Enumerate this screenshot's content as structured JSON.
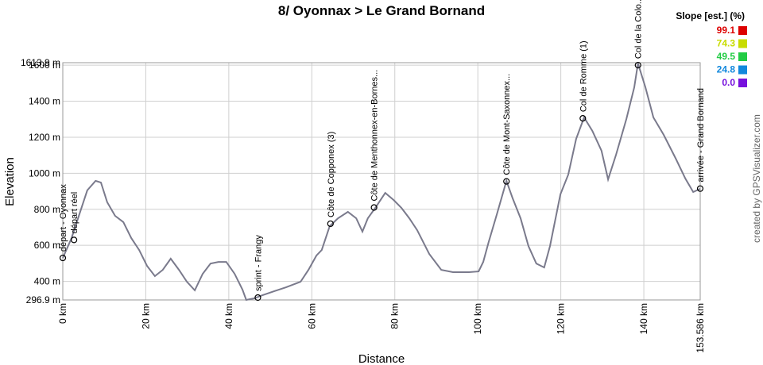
{
  "chart_data": {
    "type": "line",
    "title": "8/ Oyonnax > Le Grand Bornand",
    "x_label": "Distance",
    "y_label": "Elevation",
    "credit": "created by GPSVisualizer.com",
    "xlim": [
      0,
      153.586
    ],
    "ylim": [
      296.9,
      1613.9
    ],
    "xticks": [
      {
        "value": 0,
        "label": "0 km"
      },
      {
        "value": 20,
        "label": "20 km"
      },
      {
        "value": 40,
        "label": "40 km"
      },
      {
        "value": 60,
        "label": "60 km"
      },
      {
        "value": 80,
        "label": "80 km"
      },
      {
        "value": 100,
        "label": "100 km"
      },
      {
        "value": 120,
        "label": "120 km"
      },
      {
        "value": 140,
        "label": "140 km"
      },
      {
        "value": 153.586,
        "label": "153.586 km"
      }
    ],
    "yticks": [
      {
        "value": 296.9,
        "label": "296.9 m"
      },
      {
        "value": 400,
        "label": "400 m"
      },
      {
        "value": 600,
        "label": "600 m"
      },
      {
        "value": 800,
        "label": "800 m"
      },
      {
        "value": 1000,
        "label": "1000 m"
      },
      {
        "value": 1200,
        "label": "1200 m"
      },
      {
        "value": 1400,
        "label": "1400 m"
      },
      {
        "value": 1600,
        "label": "1600 m"
      },
      {
        "value": 1613.9,
        "label": "1613.9 m"
      }
    ],
    "grid": true,
    "x": [
      0,
      2.1,
      4.0,
      5.9,
      7.9,
      9.2,
      10.7,
      12.6,
      14.6,
      16.5,
      18.4,
      20.3,
      22.2,
      24.1,
      26.0,
      28.0,
      29.9,
      31.8,
      33.7,
      35.6,
      37.5,
      39.4,
      41.4,
      43.3,
      44.2,
      46.2,
      48.1,
      50.9,
      53.8,
      57.3,
      59.2,
      61.1,
      62.4,
      64.3,
      66.3,
      68.7,
      70.7,
      72.2,
      73.5,
      75.3,
      77.7,
      79.7,
      81.6,
      83.5,
      85.4,
      88.3,
      91.2,
      94.0,
      97.9,
      100.2,
      101.3,
      102.6,
      104.6,
      106.9,
      108.4,
      110.3,
      112.2,
      114.1,
      116.0,
      117.4,
      119.9,
      121.8,
      123.7,
      125.6,
      127.6,
      129.8,
      131.4,
      133.3,
      135.8,
      137.7,
      138.6,
      140.4,
      142.3,
      144.8,
      147.7,
      150.0,
      151.9,
      153.586
    ],
    "series": [
      {
        "name": "Elevation",
        "color": "#7a7a8c",
        "values": [
          530,
          640,
          773,
          905,
          958,
          949,
          839,
          764,
          729,
          640,
          574,
          486,
          429,
          464,
          526,
          464,
          398,
          350,
          442,
          499,
          508,
          508,
          442,
          354,
          297,
          306,
          323,
          345,
          367,
          398,
          464,
          543,
          574,
          706,
          750,
          786,
          750,
          676,
          750,
          808,
          891,
          852,
          808,
          750,
          684,
          552,
          464,
          451,
          451,
          455,
          508,
          618,
          773,
          958,
          861,
          750,
          596,
          499,
          477,
          596,
          883,
          993,
          1191,
          1310,
          1235,
          1125,
          966,
          1103,
          1301,
          1477,
          1610,
          1477,
          1310,
          1213,
          1081,
          971,
          896,
          914
        ]
      }
    ],
    "annotations": [
      {
        "label": "départ - Oyonnax",
        "x": 0,
        "y": 530
      },
      {
        "label": "départ réel",
        "x": 2.7,
        "y": 630
      },
      {
        "label": "sprint - Frangy",
        "x": 47,
        "y": 310
      },
      {
        "label": "Côte de Copponex (3)",
        "x": 64.5,
        "y": 720
      },
      {
        "label": "Côte de Menthonnex-en-Bornes...",
        "x": 75,
        "y": 810
      },
      {
        "label": "Côte de Mont-Saxonnex...",
        "x": 106.9,
        "y": 955
      },
      {
        "label": "Col de Romme (1)",
        "x": 125.3,
        "y": 1305
      },
      {
        "label": "Col de la Colo...",
        "x": 138.6,
        "y": 1600
      },
      {
        "label": "arrivée - Grand Bornand",
        "x": 153.586,
        "y": 915
      }
    ],
    "slope_legend": {
      "title": "Slope [est.] (%)",
      "items": [
        {
          "label": "99.1",
          "color": "#dd0000"
        },
        {
          "label": "74.3",
          "color": "#c8dc00"
        },
        {
          "label": "49.5",
          "color": "#22cc44"
        },
        {
          "label": "24.8",
          "color": "#1188dd"
        },
        {
          "label": "0.0",
          "color": "#7711dd"
        }
      ]
    }
  }
}
